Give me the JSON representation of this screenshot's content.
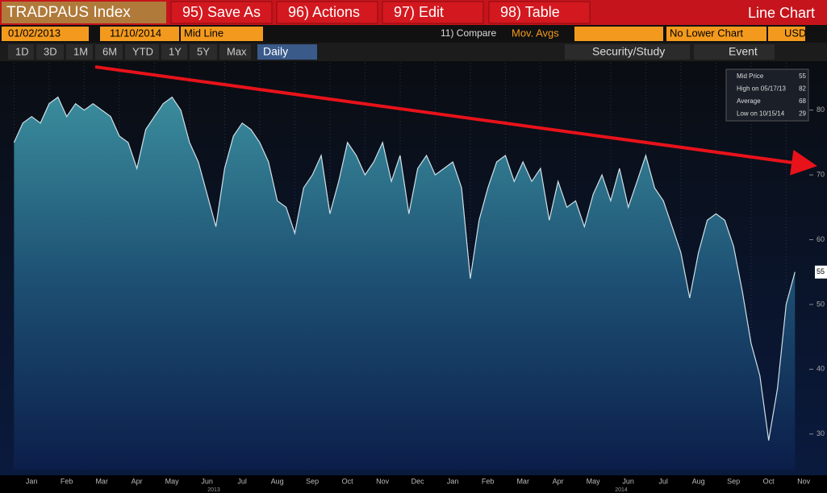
{
  "toolbar": {
    "ticker": "TRADPAUS Index",
    "buttons": [
      "95) Save As",
      "96) Actions",
      "97) Edit",
      "98) Table"
    ],
    "chart_type": "Line Chart"
  },
  "controls": {
    "start_date": "01/02/2013",
    "end_date": "11/10/2014",
    "line": "Mid Line",
    "compare": "11) Compare",
    "mov_avgs": "Mov. Avgs",
    "lower": "No Lower Chart",
    "currency": "USD"
  },
  "periods": [
    "1D",
    "3D",
    "1M",
    "6M",
    "YTD",
    "1Y",
    "5Y",
    "Max"
  ],
  "frequency": "Daily",
  "tools": [
    "Security/Study",
    "Event"
  ],
  "chart": {
    "type": "area",
    "categories": [
      null,
      null,
      "Jan",
      null,
      null,
      null,
      "Feb",
      null,
      null,
      null,
      "Mar",
      null,
      null,
      null,
      "Apr",
      null,
      null,
      null,
      "May",
      null,
      null,
      null,
      "Jun",
      null,
      null,
      null,
      "Jul",
      null,
      null,
      null,
      "Aug",
      null,
      null,
      null,
      "Sep",
      null,
      null,
      null,
      "Oct",
      null,
      null,
      null,
      "Nov",
      null,
      null,
      null,
      "Dec",
      null,
      null,
      null,
      "Jan",
      null,
      null,
      null,
      "Feb",
      null,
      null,
      null,
      "Mar",
      null,
      null,
      null,
      "Apr",
      null,
      null,
      null,
      "May",
      null,
      null,
      null,
      "Jun",
      null,
      null,
      null,
      "Jul",
      null,
      null,
      null,
      "Aug",
      null,
      null,
      null,
      "Sep",
      null,
      null,
      null,
      "Oct",
      null,
      null,
      null,
      "Nov"
    ],
    "values": [
      75,
      78,
      79,
      78,
      81,
      82,
      79,
      81,
      80,
      81,
      80,
      79,
      76,
      75,
      71,
      77,
      79,
      81,
      82,
      80,
      75,
      72,
      67,
      62,
      71,
      76,
      78,
      77,
      75,
      72,
      66,
      65,
      61,
      68,
      70,
      73,
      64,
      69,
      75,
      73,
      70,
      72,
      75,
      69,
      73,
      64,
      71,
      73,
      70,
      71,
      72,
      68,
      54,
      63,
      68,
      72,
      73,
      69,
      72,
      69,
      71,
      63,
      69,
      65,
      66,
      62,
      67,
      70,
      66,
      71,
      65,
      69,
      73,
      68,
      66,
      62,
      58,
      51,
      58,
      63,
      64,
      63,
      59,
      52,
      44,
      39,
      29,
      37,
      50,
      55,
      null
    ],
    "years": [
      "2013",
      "2014"
    ],
    "ylim": [
      24.5,
      87.3
    ],
    "yticks": [
      30,
      40,
      50,
      60,
      70,
      80
    ],
    "legend": [
      {
        "label": "Mid Price",
        "value": 55
      },
      {
        "label": "High on 05/17/13",
        "value": 82
      },
      {
        "label": "Average",
        "value": 68
      },
      {
        "label": "Low on 10/15/14",
        "value": 29
      }
    ]
  }
}
